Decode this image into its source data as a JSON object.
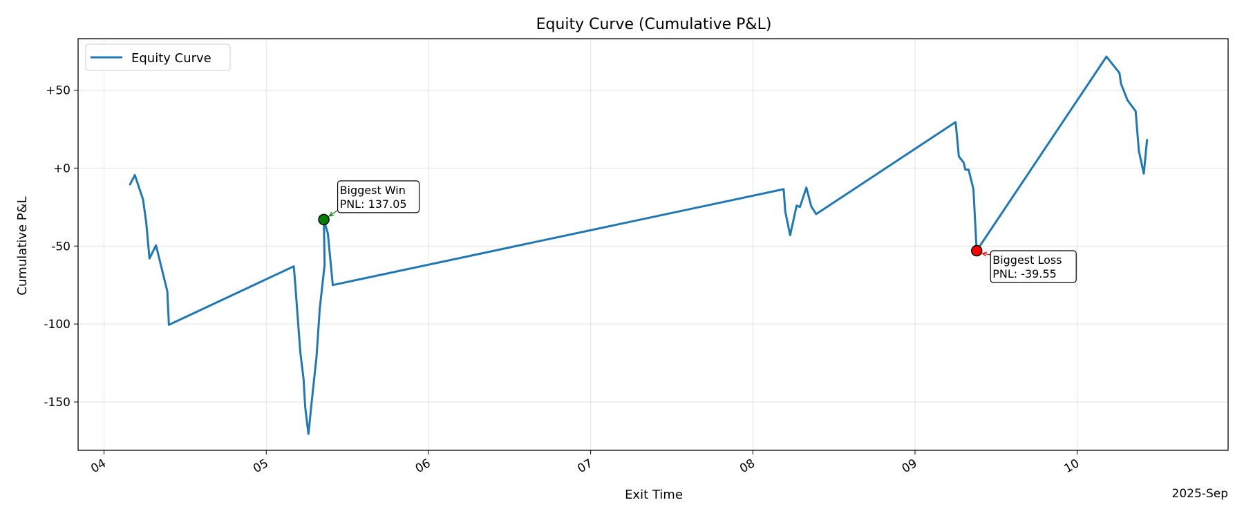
{
  "chart_data": {
    "type": "line",
    "title": "Equity Curve (Cumulative P&L)",
    "xlabel": "Exit Time",
    "ylabel": "Cumulative P&L",
    "offset_label": "2025-Sep",
    "xlim": [
      3.84,
      10.93
    ],
    "ylim": [
      -181,
      83
    ],
    "grid": true,
    "legend_position": "top-left",
    "x_ticks": [
      {
        "value": 4,
        "label": "04"
      },
      {
        "value": 5,
        "label": "05"
      },
      {
        "value": 6,
        "label": "06"
      },
      {
        "value": 7,
        "label": "07"
      },
      {
        "value": 8,
        "label": "08"
      },
      {
        "value": 9,
        "label": "09"
      },
      {
        "value": 10,
        "label": "10"
      }
    ],
    "y_ticks": [
      {
        "value": 50,
        "label": "+50"
      },
      {
        "value": 0,
        "label": "+0"
      },
      {
        "value": -50,
        "label": "-50"
      },
      {
        "value": -100,
        "label": "-100"
      },
      {
        "value": -150,
        "label": "-150"
      }
    ],
    "series": [
      {
        "name": "Equity Curve",
        "color": "#1f77b4",
        "points": [
          [
            4.16,
            -10.5
          ],
          [
            4.19,
            -4.5
          ],
          [
            4.24,
            -20
          ],
          [
            4.26,
            -35
          ],
          [
            4.28,
            -58
          ],
          [
            4.32,
            -49.5
          ],
          [
            4.39,
            -79
          ],
          [
            4.4,
            -100.5
          ],
          [
            5.17,
            -63
          ],
          [
            5.18,
            -76
          ],
          [
            5.19,
            -90
          ],
          [
            5.21,
            -118
          ],
          [
            5.23,
            -135
          ],
          [
            5.24,
            -153
          ],
          [
            5.25,
            -162
          ],
          [
            5.26,
            -170.5
          ],
          [
            5.28,
            -150
          ],
          [
            5.31,
            -121
          ],
          [
            5.33,
            -90
          ],
          [
            5.36,
            -62
          ],
          [
            5.355,
            -33
          ],
          [
            5.38,
            -42
          ],
          [
            5.41,
            -75
          ],
          [
            8.19,
            -13.5
          ],
          [
            8.2,
            -28
          ],
          [
            8.23,
            -43
          ],
          [
            8.27,
            -24
          ],
          [
            8.29,
            -25
          ],
          [
            8.33,
            -12.5
          ],
          [
            8.36,
            -24.5
          ],
          [
            8.39,
            -29.5
          ],
          [
            9.25,
            29.5
          ],
          [
            9.26,
            18.5
          ],
          [
            9.27,
            7.5
          ],
          [
            9.3,
            3.5
          ],
          [
            9.31,
            -1
          ],
          [
            9.33,
            -1
          ],
          [
            9.36,
            -13.5
          ],
          [
            9.38,
            -53
          ],
          [
            10.18,
            71.5
          ],
          [
            10.26,
            61
          ],
          [
            10.27,
            54
          ],
          [
            10.31,
            43.5
          ],
          [
            10.36,
            36.5
          ],
          [
            10.38,
            11
          ],
          [
            10.41,
            -3.5
          ],
          [
            10.43,
            18
          ]
        ]
      }
    ],
    "annotations": [
      {
        "label": "Biggest Win",
        "value_text": "PNL: 137.05",
        "x": 5.355,
        "y": -33,
        "marker_color": "#008000",
        "arrow_color": "#008000",
        "placement": "upper-right"
      },
      {
        "label": "Biggest Loss",
        "value_text": "PNL: -39.55",
        "x": 9.38,
        "y": -53,
        "marker_color": "#ff0000",
        "arrow_color": "#ff0000",
        "placement": "lower-right"
      }
    ]
  }
}
